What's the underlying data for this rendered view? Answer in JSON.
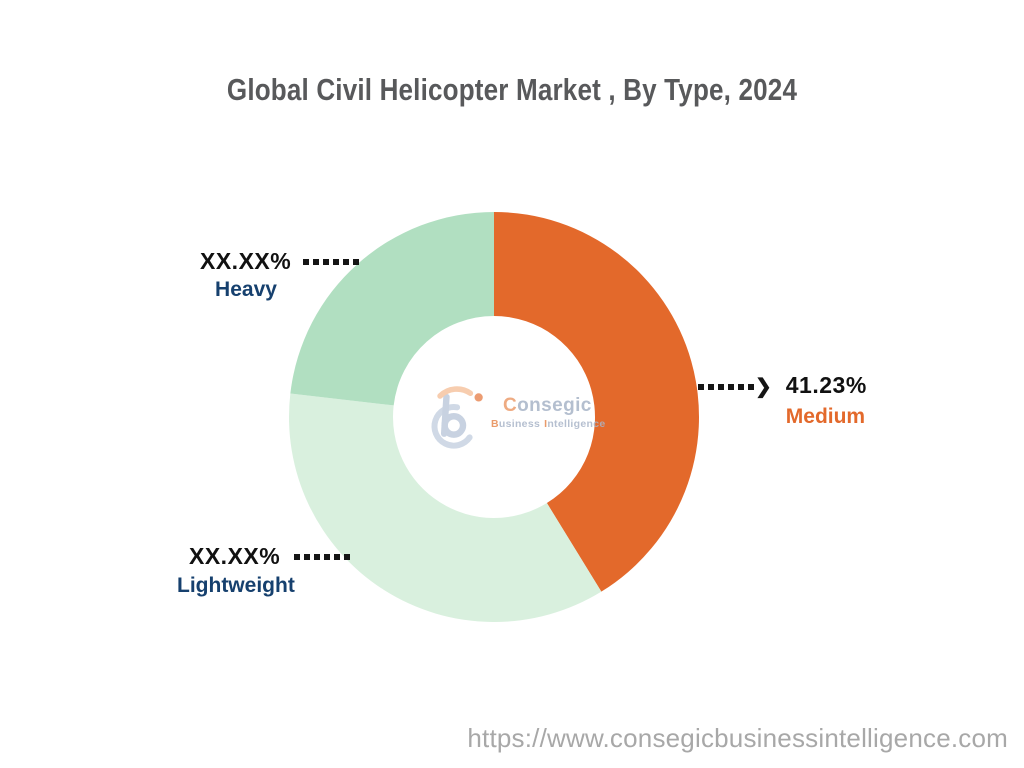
{
  "chart_data": {
    "type": "pie",
    "donut": true,
    "title": "Global Civil Helicopter Market , By Type, 2024",
    "direction": "clockwise",
    "start_angle_deg": 0,
    "legend_position": "none",
    "slices": [
      {
        "label": "Medium",
        "display_value": "41.23%",
        "value": 41.23,
        "color": "#E3692B",
        "label_color": "#E3692B"
      },
      {
        "label": "Lightweight",
        "display_value": "XX.XX%",
        "value": 35.6,
        "color": "#D9F0DE",
        "label_color": "#16406E"
      },
      {
        "label": "Heavy",
        "display_value": "XX.XX%",
        "value": 23.17,
        "color": "#B1DFC1",
        "label_color": "#16406E"
      }
    ]
  },
  "logo": {
    "brand_first": "C",
    "brand_rest": "onsegic",
    "tagline_b": "B",
    "tagline_usiness": "usiness",
    "tagline_i": "I",
    "tagline_ntelligence": "ntelligence"
  },
  "footer": {
    "url": "https://www.consegicbusinessintelligence.com"
  },
  "colors": {
    "title_text": "#58595B",
    "value_text": "#111111",
    "leader_dots": "#151515",
    "url_text": "#A8A8A8",
    "logo_blue_gray": "#C8D3E2",
    "logo_peach": "#F6C5A2",
    "logo_orange_dot": "#E46E31"
  }
}
